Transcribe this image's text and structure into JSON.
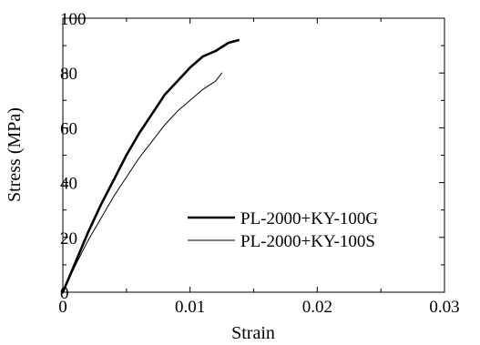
{
  "chart_data": {
    "type": "line",
    "title": "",
    "xlabel": "Strain",
    "ylabel": "Stress (MPa)",
    "xlim": [
      0,
      0.03
    ],
    "ylim": [
      0,
      100
    ],
    "x_ticks": [
      0,
      0.01,
      0.02,
      0.03
    ],
    "x_tick_labels": [
      "0",
      "0.01",
      "0.02",
      "0.03"
    ],
    "y_ticks": [
      0,
      20,
      40,
      60,
      80,
      100
    ],
    "y_tick_labels": [
      "0",
      "20",
      "40",
      "60",
      "80",
      "100"
    ],
    "grid": false,
    "legend_position": "lower-right",
    "series": [
      {
        "name": "PL-2000+KY-100G",
        "style": "thick",
        "color": "#000000",
        "x": [
          0,
          0.001,
          0.002,
          0.003,
          0.004,
          0.005,
          0.006,
          0.007,
          0.008,
          0.009,
          0.01,
          0.011,
          0.012,
          0.013,
          0.0138
        ],
        "y": [
          0,
          11,
          22,
          32,
          41,
          50,
          58,
          65,
          72,
          77,
          82,
          86,
          88,
          91,
          92
        ]
      },
      {
        "name": "PL-2000+KY-100S",
        "style": "thin",
        "color": "#000000",
        "x": [
          0,
          0.001,
          0.002,
          0.003,
          0.004,
          0.005,
          0.006,
          0.007,
          0.008,
          0.009,
          0.01,
          0.011,
          0.012,
          0.0125
        ],
        "y": [
          0,
          10,
          19,
          27,
          35,
          42,
          49,
          55,
          61,
          66,
          70,
          74,
          77,
          80
        ]
      }
    ]
  }
}
